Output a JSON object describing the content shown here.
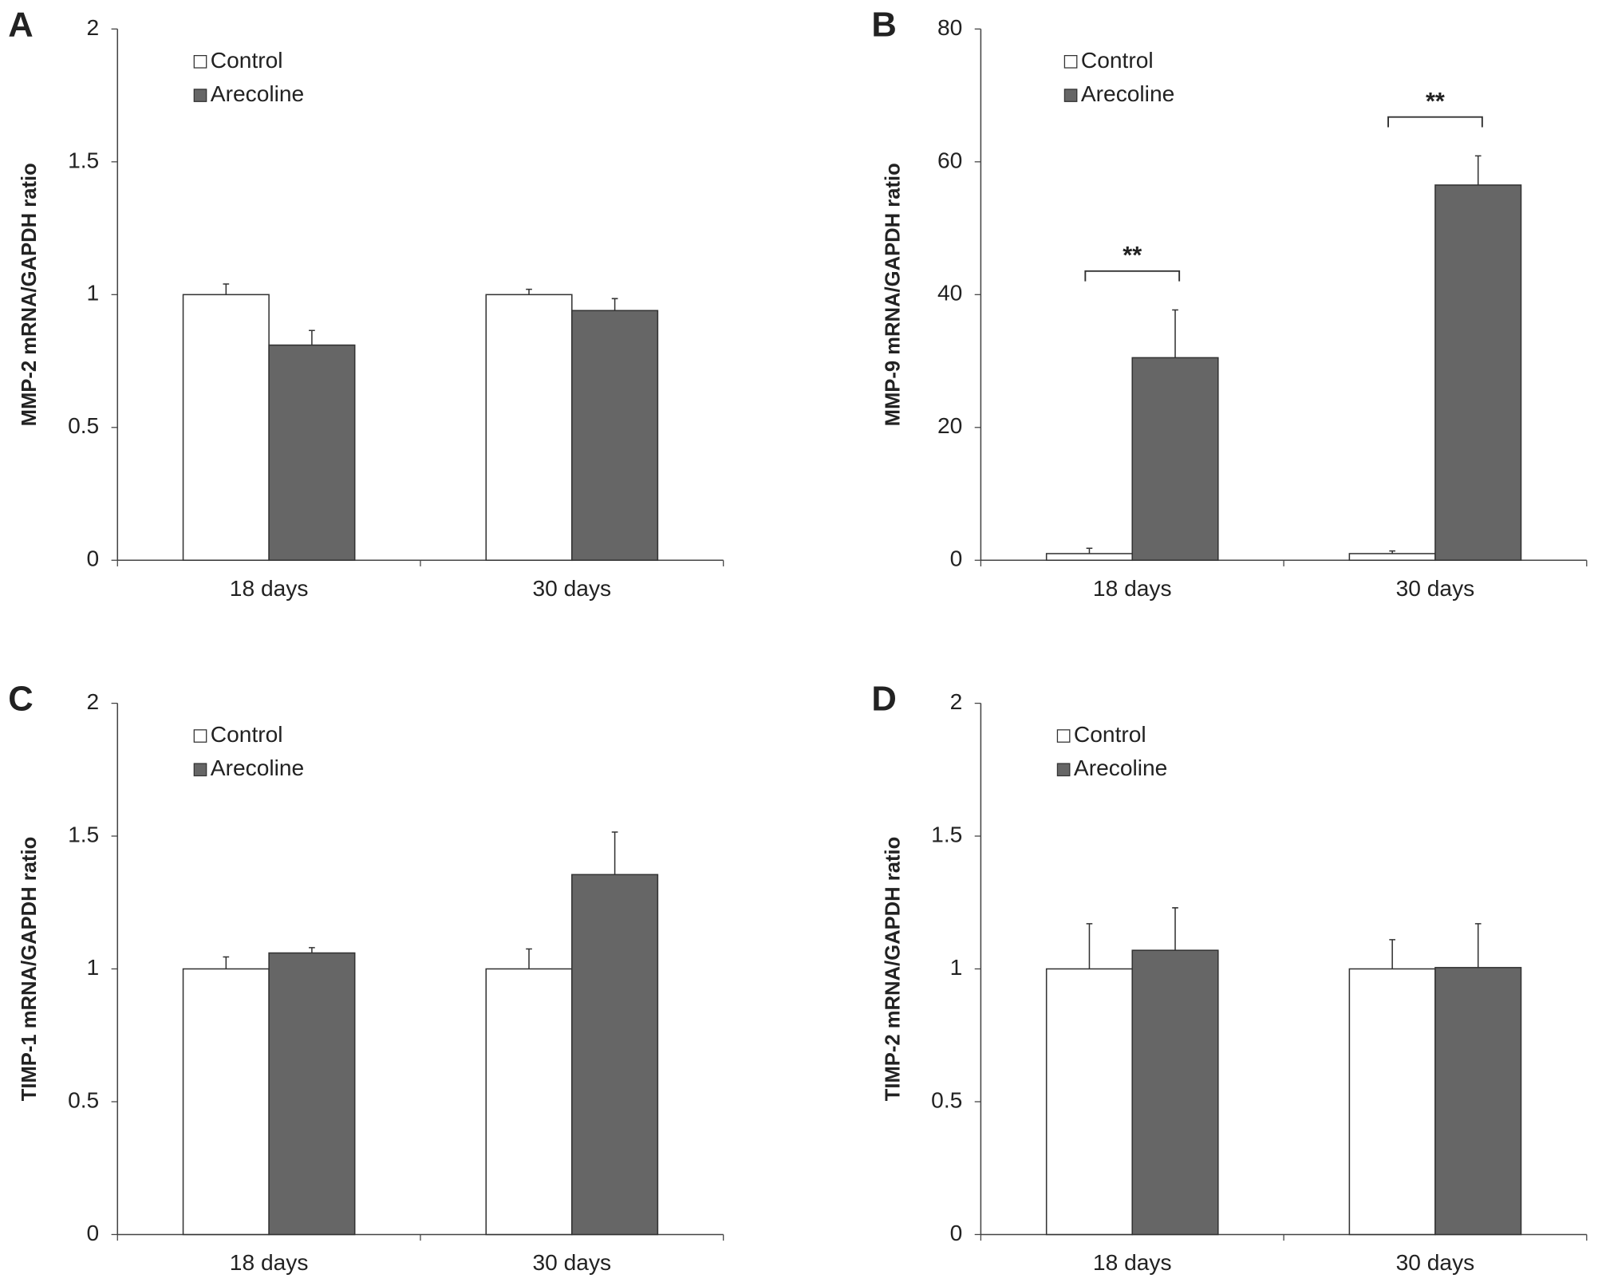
{
  "chart_data": [
    {
      "type": "bar",
      "panel": "A",
      "y_label": "MMP-2 mRNA/GAPDH ratio",
      "categories": [
        "18 days",
        "30 days"
      ],
      "series": [
        {
          "name": "Control",
          "color": "#ffffff",
          "values": [
            1,
            1
          ],
          "errors": [
            0.04,
            0.02
          ]
        },
        {
          "name": "Arecoline",
          "color": "#666666",
          "values": [
            0.81,
            0.94
          ],
          "errors": [
            0.055,
            0.045
          ]
        }
      ],
      "ylim": [
        0,
        2
      ],
      "yticks": [
        0,
        0.5,
        1,
        1.5,
        2
      ]
    },
    {
      "type": "bar",
      "panel": "B",
      "y_label": "MMP-9 mRNA/GAPDH ratio",
      "categories": [
        "18 days",
        "30 days"
      ],
      "series": [
        {
          "name": "Control",
          "color": "#ffffff",
          "values": [
            1,
            1
          ],
          "errors": [
            0.8,
            0.4
          ]
        },
        {
          "name": "Arecoline",
          "color": "#666666",
          "values": [
            30.5,
            56.5
          ],
          "errors": [
            7.2,
            4.4
          ]
        }
      ],
      "annotations": [
        "**",
        "**"
      ],
      "ylim": [
        0,
        80
      ],
      "yticks": [
        0,
        20,
        40,
        60,
        80
      ]
    },
    {
      "type": "bar",
      "panel": "C",
      "y_label": "TIMP-1 mRNA/GAPDH ratio",
      "categories": [
        "18 days",
        "30 days"
      ],
      "series": [
        {
          "name": "Control",
          "color": "#ffffff",
          "values": [
            1,
            1
          ],
          "errors": [
            0.045,
            0.075
          ]
        },
        {
          "name": "Arecoline",
          "color": "#666666",
          "values": [
            1.06,
            1.355
          ],
          "errors": [
            0.02,
            0.16
          ]
        }
      ],
      "ylim": [
        0,
        2
      ],
      "yticks": [
        0,
        0.5,
        1,
        1.5,
        2
      ]
    },
    {
      "type": "bar",
      "panel": "D",
      "y_label": "TIMP-2 mRNA/GAPDH ratio",
      "categories": [
        "18 days",
        "30 days"
      ],
      "series": [
        {
          "name": "Control",
          "color": "#ffffff",
          "values": [
            1,
            1
          ],
          "errors": [
            0.17,
            0.11
          ]
        },
        {
          "name": "Arecoline",
          "color": "#666666",
          "values": [
            1.07,
            1.005
          ],
          "errors": [
            0.16,
            0.165
          ]
        }
      ],
      "ylim": [
        0,
        2
      ],
      "yticks": [
        0,
        0.5,
        1,
        1.5,
        2
      ]
    }
  ]
}
